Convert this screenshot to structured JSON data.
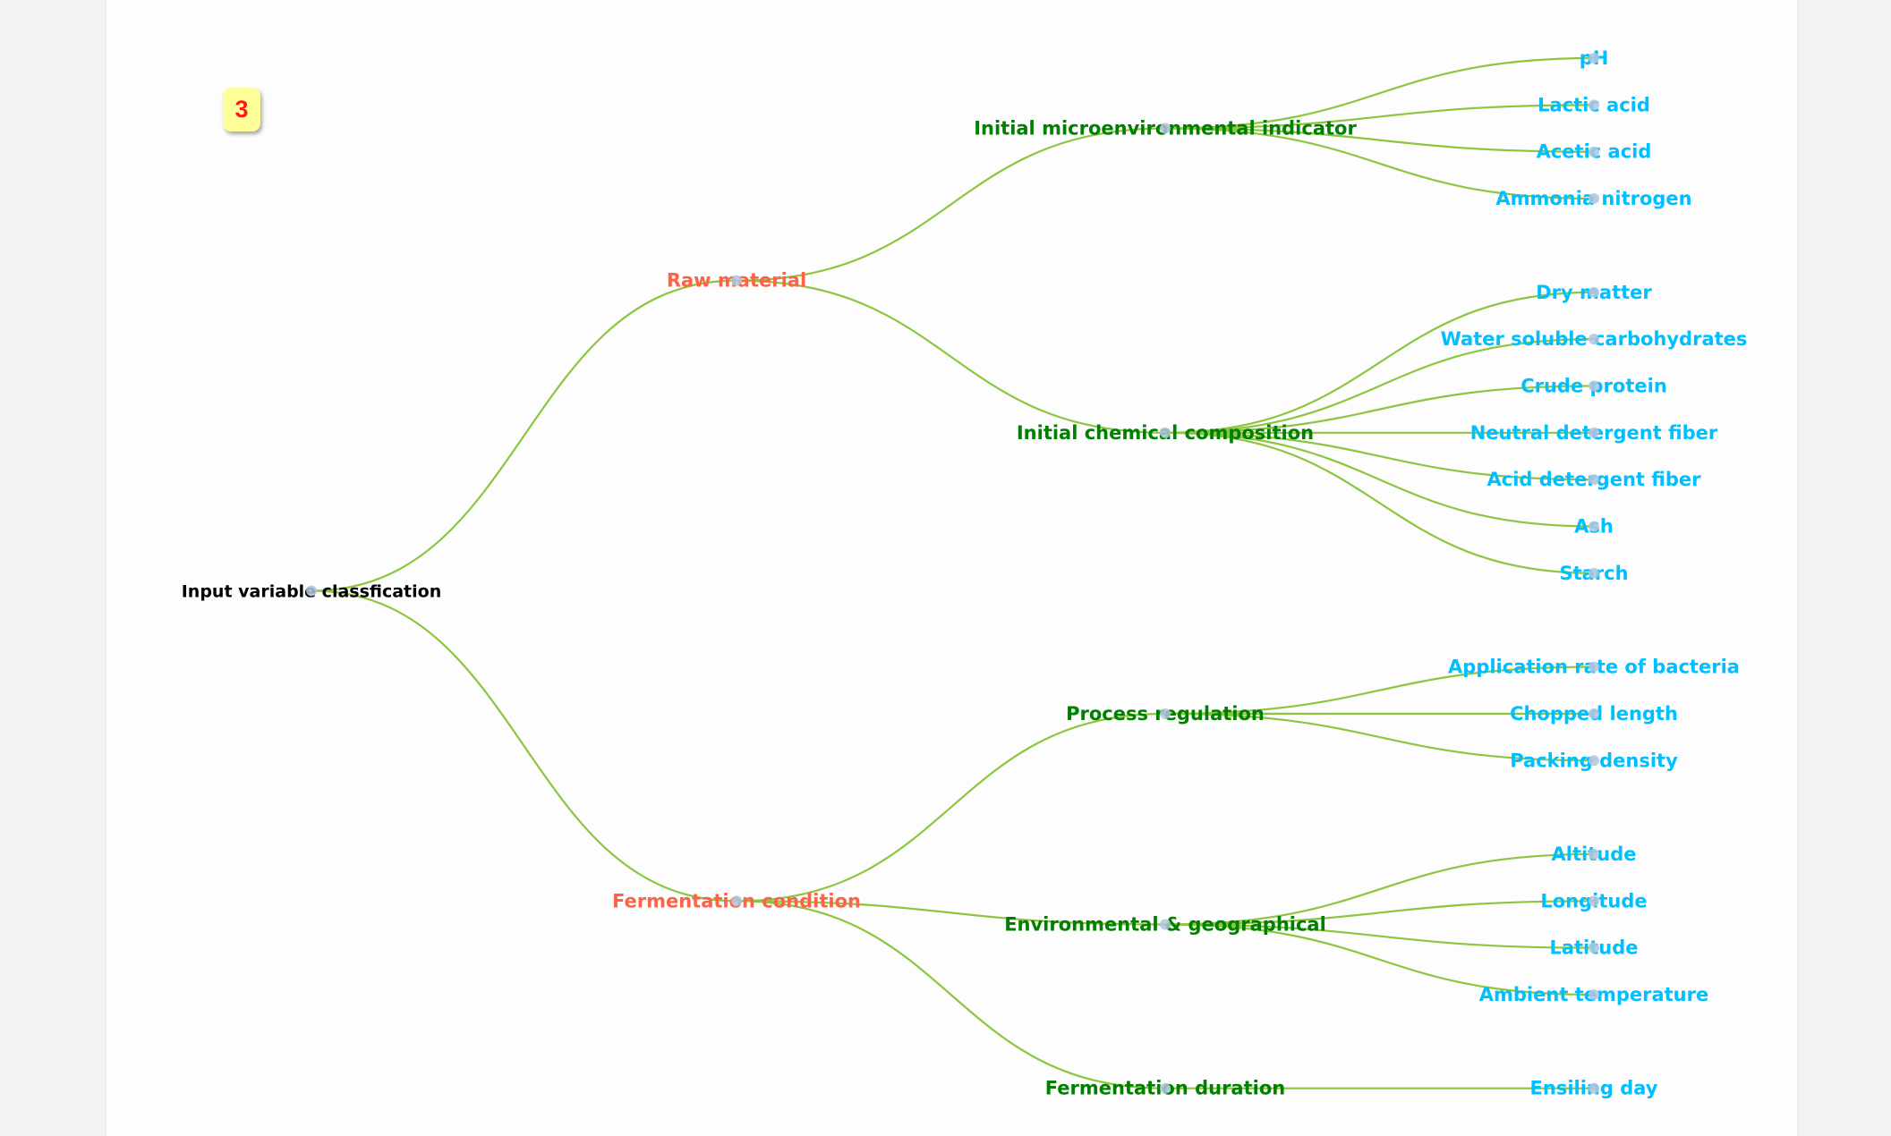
{
  "badge": "3",
  "colors": {
    "link": "#8cc63f",
    "node": "#b0c4de",
    "level0": "#000000",
    "level1": "#ff6347",
    "level2": "#008000",
    "level3": "#00bfff"
  },
  "tree": {
    "name": "Input variable classfication",
    "children": [
      {
        "name": "Raw material",
        "children": [
          {
            "name": "Initial microenvironmental indicator",
            "children": [
              {
                "name": "pH"
              },
              {
                "name": "Lactic acid"
              },
              {
                "name": "Acetic acid"
              },
              {
                "name": "Ammonia nitrogen"
              }
            ]
          },
          {
            "name": "Initial chemical composition",
            "children": [
              {
                "name": "Dry matter"
              },
              {
                "name": "Water soluble carbohydrates"
              },
              {
                "name": "Crude protein"
              },
              {
                "name": "Neutral detergent fiber"
              },
              {
                "name": "Acid detergent fiber"
              },
              {
                "name": "Ash"
              },
              {
                "name": "Starch"
              }
            ]
          }
        ]
      },
      {
        "name": "Fermentation condition",
        "children": [
          {
            "name": "Process regulation",
            "children": [
              {
                "name": "Application rate of bacteria"
              },
              {
                "name": "Chopped length"
              },
              {
                "name": "Packing density"
              }
            ]
          },
          {
            "name": "Environmental & geographical",
            "children": [
              {
                "name": "Altitude"
              },
              {
                "name": "Longitude"
              },
              {
                "name": "Latitude"
              },
              {
                "name": "Ambient temperature"
              }
            ]
          },
          {
            "name": "Fermentation duration",
            "children": [
              {
                "name": "Ensiling day"
              }
            ]
          }
        ]
      }
    ]
  }
}
